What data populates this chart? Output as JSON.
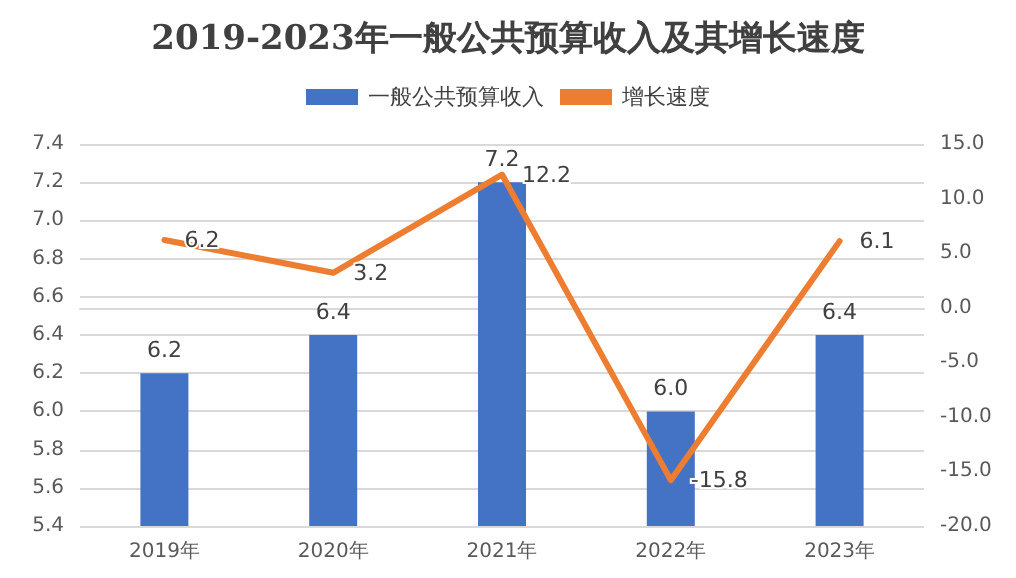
{
  "chart_data": {
    "type": "bar",
    "title": "2019-2023年一般公共预算收入及其增长速度",
    "categories": [
      "2019年",
      "2020年",
      "2021年",
      "2022年",
      "2023年"
    ],
    "series": [
      {
        "name": "一般公共预算收入",
        "color": "#4472c4",
        "values": [
          6.2,
          6.4,
          7.2,
          6.0,
          6.4
        ],
        "value_labels": [
          "6.2",
          "6.4",
          "7.2",
          "6.0",
          "6.4"
        ]
      },
      {
        "name": "增长速度",
        "type": "line",
        "axis": "y2",
        "color": "#ed7d31",
        "values": [
          6.2,
          3.2,
          12.2,
          -15.8,
          6.1
        ],
        "value_labels": [
          "6.2",
          "3.2",
          "12.2",
          "-15.8",
          "6.1"
        ]
      }
    ],
    "ylim": [
      5.4,
      7.4
    ],
    "yticks": [
      {
        "value": 5.4,
        "label": "5.4"
      },
      {
        "value": 5.6,
        "label": "5.6"
      },
      {
        "value": 5.8,
        "label": "5.8"
      },
      {
        "value": 6.0,
        "label": "6.0"
      },
      {
        "value": 6.2,
        "label": "6.2"
      },
      {
        "value": 6.4,
        "label": "6.4"
      },
      {
        "value": 6.6,
        "label": "6.6"
      },
      {
        "value": 6.8,
        "label": "6.8"
      },
      {
        "value": 7.0,
        "label": "7.0"
      },
      {
        "value": 7.2,
        "label": "7.2"
      },
      {
        "value": 7.4,
        "label": "7.4"
      }
    ],
    "y2lim": [
      -20,
      15
    ],
    "y2ticks": [
      {
        "value": -20,
        "label": "-20.0"
      },
      {
        "value": -15,
        "label": "-15.0"
      },
      {
        "value": -10,
        "label": "-10.0"
      },
      {
        "value": -5,
        "label": "-5.0"
      },
      {
        "value": 0,
        "label": "0.0"
      },
      {
        "value": 5,
        "label": "5.0"
      },
      {
        "value": 10,
        "label": "10.0"
      },
      {
        "value": 15,
        "label": "15.0"
      }
    ],
    "grid": "y",
    "legend": "top",
    "marker": "none",
    "line_style": "solid"
  }
}
